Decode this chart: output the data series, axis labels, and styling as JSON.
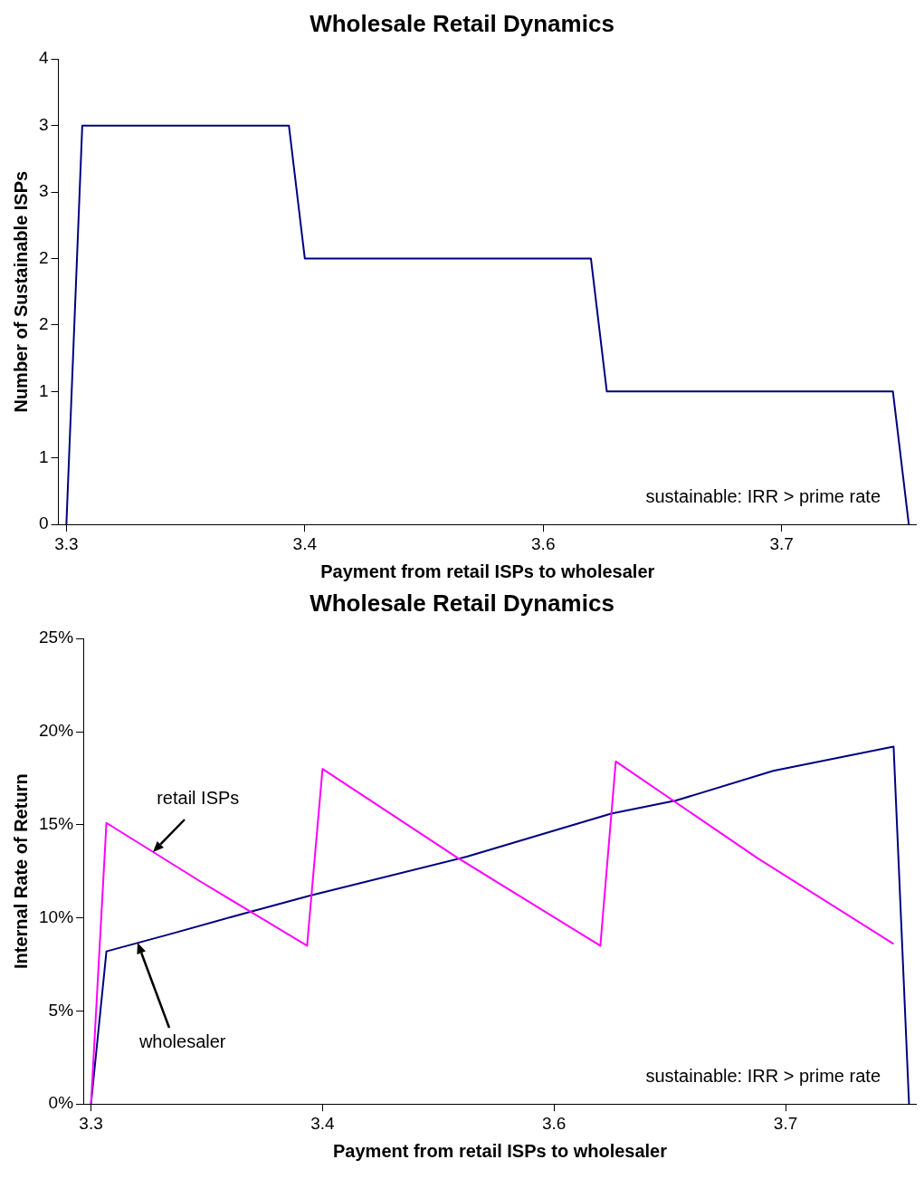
{
  "chart_data": [
    {
      "type": "line",
      "title": "Wholesale Retail Dynamics",
      "xlabel": "Payment from retail ISPs to wholesaler",
      "ylabel": "Number of Sustainable ISPs",
      "annotations": [
        "sustainable: IRR > prime rate"
      ],
      "xlim": [
        3.295,
        3.835
      ],
      "xticks": [
        {
          "value": 3.3,
          "label": "3.3"
        },
        {
          "value": 3.45,
          "label": "3.4"
        },
        {
          "value": 3.6,
          "label": "3.6"
        },
        {
          "value": 3.75,
          "label": "3.7"
        }
      ],
      "ylim": [
        0,
        3.5
      ],
      "yticks": [
        0,
        {
          "value": 0.5,
          "label": "1"
        },
        1,
        {
          "value": 1.5,
          "label": "2"
        },
        2,
        {
          "value": 2.5,
          "label": "3"
        },
        3,
        {
          "value": 3.5,
          "label": "4"
        }
      ],
      "grid": false,
      "legend": false,
      "marker": "none",
      "line_style": "solid",
      "series": [
        {
          "color": "#000080",
          "x": [
            3.3,
            3.31,
            3.44,
            3.45,
            3.63,
            3.64,
            3.82,
            3.83
          ],
          "values": [
            0,
            3,
            3,
            2,
            2,
            1,
            1,
            0
          ]
        }
      ]
    },
    {
      "type": "line",
      "title": "Wholesale Retail Dynamics",
      "xlabel": "Payment from retail ISPs to wholesaler",
      "ylabel": "Internal Rate of Return",
      "annotations": [
        "sustainable: IRR > prime rate"
      ],
      "xlim": [
        3.295,
        3.835
      ],
      "xticks": [
        {
          "value": 3.3,
          "label": "3.3"
        },
        {
          "value": 3.45,
          "label": "3.4"
        },
        {
          "value": 3.6,
          "label": "3.6"
        },
        {
          "value": 3.75,
          "label": "3.7"
        }
      ],
      "ylim": [
        0,
        25
      ],
      "yticks": [
        {
          "value": 0,
          "label": "0%"
        },
        {
          "value": 5,
          "label": "5%"
        },
        {
          "value": 10,
          "label": "10%"
        },
        {
          "value": 15,
          "label": "15%"
        },
        {
          "value": 20,
          "label": "20%"
        },
        {
          "value": 25,
          "label": "25%"
        }
      ],
      "grid": false,
      "legend": false,
      "marker": "none",
      "line_style": "solid",
      "series": [
        {
          "name": "retail ISPs",
          "color": "#ff00ff",
          "x": [
            3.3,
            3.31,
            3.37,
            3.44,
            3.45,
            3.538,
            3.63,
            3.64,
            3.732,
            3.82
          ],
          "values": [
            0,
            15.1,
            12.0,
            8.5,
            18.0,
            13.2,
            8.5,
            18.4,
            13.2,
            8.6
          ]
        },
        {
          "name": "wholesaler",
          "color": "#000080",
          "x": [
            3.3,
            3.31,
            3.35,
            3.402,
            3.442,
            3.544,
            3.637,
            3.679,
            3.742,
            3.82,
            3.83
          ],
          "values": [
            0,
            8.2,
            9.1,
            10.3,
            11.2,
            13.3,
            15.6,
            16.3,
            17.9,
            19.2,
            0
          ]
        }
      ]
    }
  ]
}
